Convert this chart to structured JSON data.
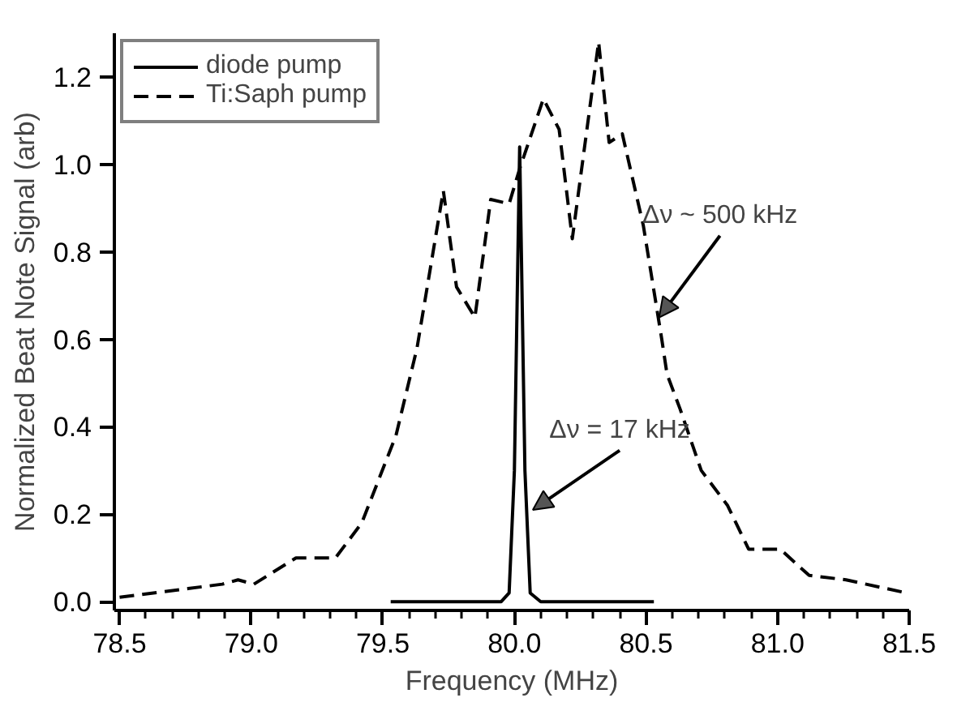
{
  "chart_data": {
    "type": "line",
    "xlabel": "Frequency (MHz)",
    "ylabel": "Normalized Beat Note Signal (arb)",
    "xlim": [
      78.48,
      81.5
    ],
    "ylim": [
      -0.02,
      1.3
    ],
    "xticks": [
      {
        "value": 78.5,
        "label": "78.5"
      },
      {
        "value": 79,
        "label": "79.0"
      },
      {
        "value": 79.5,
        "label": "79.5"
      },
      {
        "value": 80,
        "label": "80.0"
      },
      {
        "value": 80.5,
        "label": "80.5"
      },
      {
        "value": 81,
        "label": "81.0"
      },
      {
        "value": 81.5,
        "label": "81.5"
      }
    ],
    "yticks": [
      {
        "value": 0,
        "label": "0.0"
      },
      {
        "value": 0.2,
        "label": "0.2"
      },
      {
        "value": 0.4,
        "label": "0.4"
      },
      {
        "value": 0.6,
        "label": "0.6"
      },
      {
        "value": 0.8,
        "label": "0.8"
      },
      {
        "value": 1.0,
        "label": "1.0"
      },
      {
        "value": 1.2,
        "label": "1.2"
      }
    ],
    "grid": false,
    "legend": "top left",
    "marker": "none",
    "series": [
      {
        "name": "diode pump",
        "color": "#000000",
        "line_style": "solid",
        "x": [
          79.53,
          79.95,
          79.98,
          80.0,
          80.02,
          80.04,
          80.06,
          80.1,
          80.53
        ],
        "values": [
          0,
          0,
          0.02,
          0.3,
          1.04,
          0.3,
          0.02,
          0,
          0
        ]
      },
      {
        "name": "Ti:Saph pump",
        "color": "#000000",
        "line_style": "dashed",
        "x": [
          78.5,
          78.76,
          78.89,
          78.95,
          79.01,
          79.17,
          79.32,
          79.42,
          79.55,
          79.63,
          79.73,
          79.78,
          79.85,
          79.91,
          79.98,
          80.02,
          80.11,
          80.17,
          80.22,
          80.32,
          80.36,
          80.41,
          80.49,
          80.56,
          80.58,
          80.63,
          80.71,
          80.81,
          80.89,
          81.01,
          81.12,
          81.26,
          81.49
        ],
        "values": [
          0.01,
          0.03,
          0.04,
          0.05,
          0.04,
          0.1,
          0.1,
          0.18,
          0.38,
          0.58,
          0.94,
          0.72,
          0.65,
          0.92,
          0.91,
          0.99,
          1.15,
          1.08,
          0.83,
          1.28,
          1.05,
          1.07,
          0.86,
          0.6,
          0.52,
          0.44,
          0.3,
          0.22,
          0.12,
          0.12,
          0.06,
          0.05,
          0.02
        ]
      }
    ],
    "annotations": [
      {
        "text": "Δν ~ 500 kHz",
        "x": 80.55,
        "y": 0.65
      },
      {
        "text": "Δν = 17 kHz",
        "x": 80.07,
        "y": 0.21
      }
    ]
  }
}
